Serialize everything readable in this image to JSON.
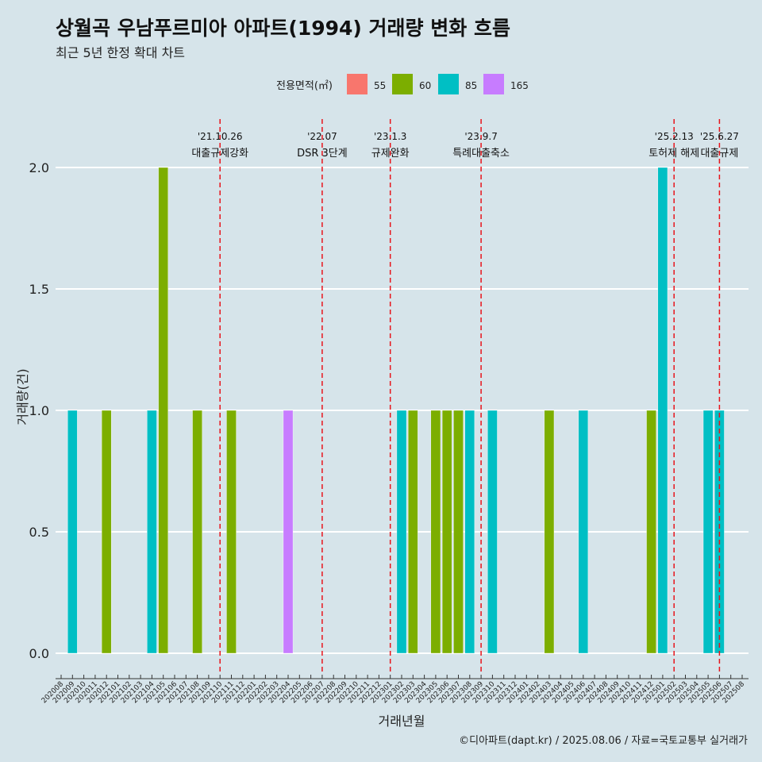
{
  "chart_data": {
    "type": "bar",
    "title": "상월곡 우남푸르미아 아파트(1994) 거래량 변화 흐름",
    "subtitle": "최근 5년 한정 확대 차트",
    "xlabel": "거래년월",
    "ylabel": "거래량(건)",
    "ylim": [
      0,
      2
    ],
    "yticks": [
      "0.0",
      "0.5",
      "1.0",
      "1.5",
      "2.0"
    ],
    "legend_title": "전용면적(㎡)",
    "legend": [
      {
        "name": "55",
        "color": "#f8766d"
      },
      {
        "name": "60",
        "color": "#7cae00"
      },
      {
        "name": "85",
        "color": "#00bfc4"
      },
      {
        "name": "165",
        "color": "#c77cff"
      }
    ],
    "categories": [
      "202008",
      "202009",
      "202010",
      "202011",
      "202012",
      "202101",
      "202102",
      "202103",
      "202104",
      "202105",
      "202106",
      "202107",
      "202108",
      "202109",
      "202110",
      "202111",
      "202112",
      "202201",
      "202202",
      "202203",
      "202204",
      "202205",
      "202206",
      "202207",
      "202208",
      "202209",
      "202210",
      "202211",
      "202212",
      "202301",
      "202302",
      "202303",
      "202304",
      "202305",
      "202306",
      "202307",
      "202308",
      "202309",
      "202310",
      "202311",
      "202312",
      "202401",
      "202402",
      "202403",
      "202404",
      "202405",
      "202406",
      "202407",
      "202408",
      "202409",
      "202410",
      "202411",
      "202412",
      "202501",
      "202502",
      "202503",
      "202504",
      "202505",
      "202506",
      "202507",
      "202508"
    ],
    "series": [
      {
        "name": "60",
        "values": {
          "202012": 1,
          "202105": 2,
          "202108": 1,
          "202111": 1,
          "202303": 1,
          "202305": 1,
          "202306": 1,
          "202307": 1,
          "202403": 1,
          "202412": 1
        }
      },
      {
        "name": "85",
        "values": {
          "202009": 1,
          "202104": 1,
          "202302": 1,
          "202308": 1,
          "202310": 1,
          "202406": 1,
          "202501": 2,
          "202505": 1,
          "202506": 1
        }
      },
      {
        "name": "165",
        "values": {
          "202204": 1
        }
      }
    ],
    "events": [
      {
        "date": "'21.10.26",
        "label": "대출규제강화",
        "month": "202110"
      },
      {
        "date": "'22.07",
        "label": "DSR 3단계",
        "month": "202207"
      },
      {
        "date": "'23.1.3",
        "label": "규제완화",
        "month": "202301"
      },
      {
        "date": "'23.9.7",
        "label": "특례대출축소",
        "month": "202309"
      },
      {
        "date": "'25.2.13",
        "label": "토허제 해제",
        "month": "202502"
      },
      {
        "date": "'25.6.27",
        "label": "대출규제",
        "month": "202506"
      }
    ]
  },
  "caption": "©디아파트(dapt.kr) / 2025.08.06 / 자료=국토교통부 실거래가"
}
